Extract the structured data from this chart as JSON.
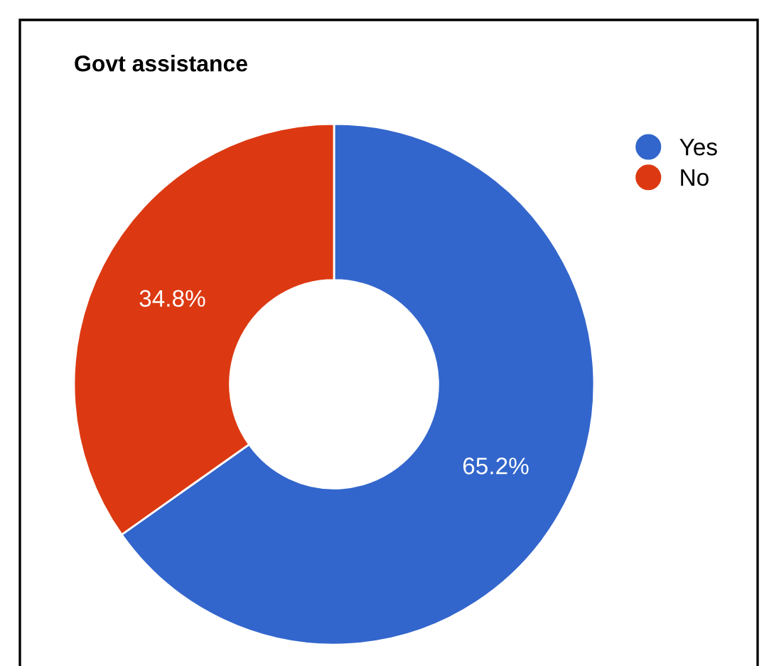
{
  "chart_data": {
    "type": "donut",
    "title": "Govt assistance",
    "categories": [
      "Yes",
      "No"
    ],
    "values": [
      65.2,
      34.8
    ],
    "value_labels": [
      "65.2%",
      "34.8%"
    ],
    "colors": [
      "#3366cc",
      "#dc3912"
    ],
    "legend": "top right"
  }
}
